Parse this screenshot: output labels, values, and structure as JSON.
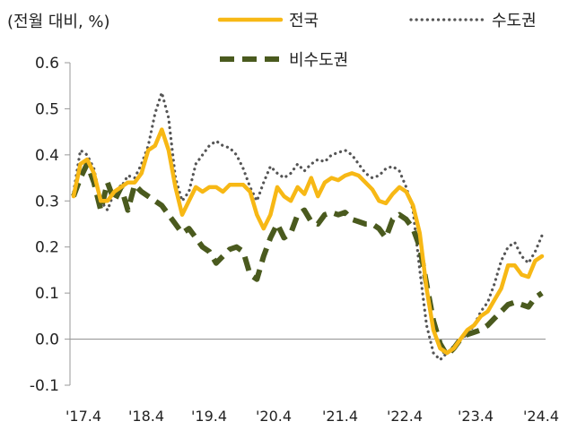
{
  "chart_data": {
    "type": "line",
    "unit_label": "(전월 대비, %)",
    "ylim": [
      -0.1,
      0.6
    ],
    "yticks": [
      "0.6",
      "0.5",
      "0.4",
      "0.3",
      "0.2",
      "0.1",
      "0.0",
      "-0.1"
    ],
    "xticks": [
      "'17.4",
      "'18.4",
      "'19.4",
      "'20.4",
      "'21.4",
      "'22.4",
      "'23.4",
      "'24.4"
    ],
    "zero_line": true,
    "legend_position": "top",
    "series": [
      {
        "name": "전국",
        "color": "#F7B815",
        "style": "solid",
        "values": [
          0.31,
          0.38,
          0.39,
          0.36,
          0.3,
          0.3,
          0.32,
          0.33,
          0.34,
          0.34,
          0.36,
          0.41,
          0.42,
          0.455,
          0.41,
          0.33,
          0.27,
          0.3,
          0.33,
          0.32,
          0.33,
          0.33,
          0.32,
          0.335,
          0.335,
          0.335,
          0.32,
          0.27,
          0.24,
          0.27,
          0.33,
          0.31,
          0.3,
          0.33,
          0.315,
          0.35,
          0.31,
          0.34,
          0.35,
          0.345,
          0.355,
          0.36,
          0.355,
          0.34,
          0.325,
          0.3,
          0.295,
          0.315,
          0.33,
          0.32,
          0.29,
          0.23,
          0.11,
          0.02,
          -0.02,
          -0.03,
          -0.02,
          0.0,
          0.02,
          0.03,
          0.05,
          0.06,
          0.085,
          0.11,
          0.16,
          0.16,
          0.14,
          0.135,
          0.17,
          0.18
        ]
      },
      {
        "name": "수도권",
        "color": "#555555",
        "style": "dotted",
        "values": [
          0.32,
          0.41,
          0.4,
          0.37,
          0.3,
          0.28,
          0.32,
          0.33,
          0.355,
          0.35,
          0.38,
          0.42,
          0.49,
          0.535,
          0.48,
          0.35,
          0.3,
          0.32,
          0.38,
          0.4,
          0.42,
          0.43,
          0.42,
          0.415,
          0.4,
          0.37,
          0.33,
          0.3,
          0.34,
          0.375,
          0.36,
          0.35,
          0.36,
          0.38,
          0.365,
          0.38,
          0.39,
          0.385,
          0.4,
          0.405,
          0.41,
          0.4,
          0.38,
          0.36,
          0.35,
          0.355,
          0.37,
          0.375,
          0.365,
          0.33,
          0.28,
          0.15,
          0.03,
          -0.03,
          -0.045,
          -0.03,
          -0.015,
          0.0,
          0.01,
          0.03,
          0.06,
          0.08,
          0.12,
          0.17,
          0.2,
          0.21,
          0.18,
          0.165,
          0.19,
          0.225
        ]
      },
      {
        "name": "비수도권",
        "color": "#4A5A1E",
        "style": "dashed",
        "values": [
          0.31,
          0.35,
          0.38,
          0.34,
          0.28,
          0.34,
          0.3,
          0.33,
          0.28,
          0.335,
          0.32,
          0.31,
          0.3,
          0.29,
          0.27,
          0.25,
          0.23,
          0.24,
          0.22,
          0.2,
          0.19,
          0.165,
          0.18,
          0.195,
          0.2,
          0.19,
          0.14,
          0.13,
          0.18,
          0.22,
          0.25,
          0.22,
          0.23,
          0.27,
          0.28,
          0.255,
          0.25,
          0.27,
          0.275,
          0.27,
          0.275,
          0.26,
          0.255,
          0.25,
          0.25,
          0.24,
          0.22,
          0.26,
          0.27,
          0.26,
          0.24,
          0.2,
          0.12,
          0.04,
          -0.01,
          -0.035,
          -0.02,
          0.0,
          0.01,
          0.015,
          0.02,
          0.03,
          0.045,
          0.06,
          0.075,
          0.08,
          0.075,
          0.07,
          0.09,
          0.1
        ]
      }
    ]
  }
}
